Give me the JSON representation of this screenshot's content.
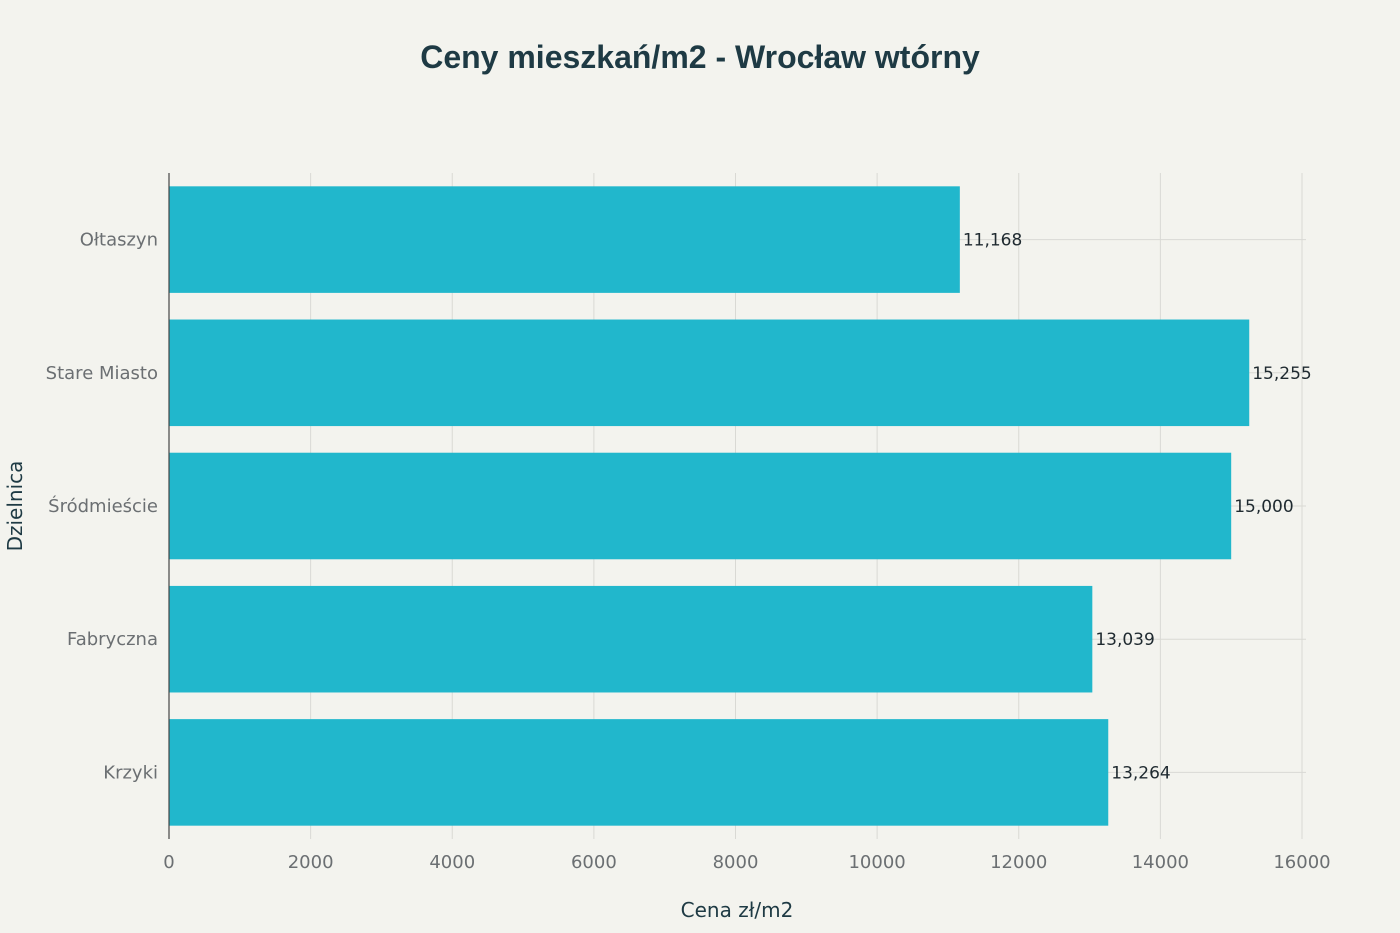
{
  "chart_data": {
    "type": "bar",
    "orientation": "horizontal",
    "title": "Ceny mieszkań/m2 - Wrocław wtórny",
    "xlabel": "Cena zł/m2",
    "ylabel": "Dzielnica",
    "categories": [
      "Ołtaszyn",
      "Stare Miasto",
      "Śródmieście",
      "Fabryczna",
      "Krzyki"
    ],
    "values": [
      11168,
      15255,
      15000,
      13039,
      13264
    ],
    "data_labels": [
      "11,168",
      "15,255",
      "15,000",
      "13,039",
      "13,264"
    ],
    "x_ticks": [
      "0",
      "2000",
      "4000",
      "6000",
      "8000",
      "10000",
      "12000",
      "14000",
      "16000"
    ],
    "xlim": [
      0,
      16000
    ],
    "grid": true,
    "bar_color": "#21b7cc",
    "grid_color": "#d9d9d4",
    "axis_color": "#444444"
  }
}
